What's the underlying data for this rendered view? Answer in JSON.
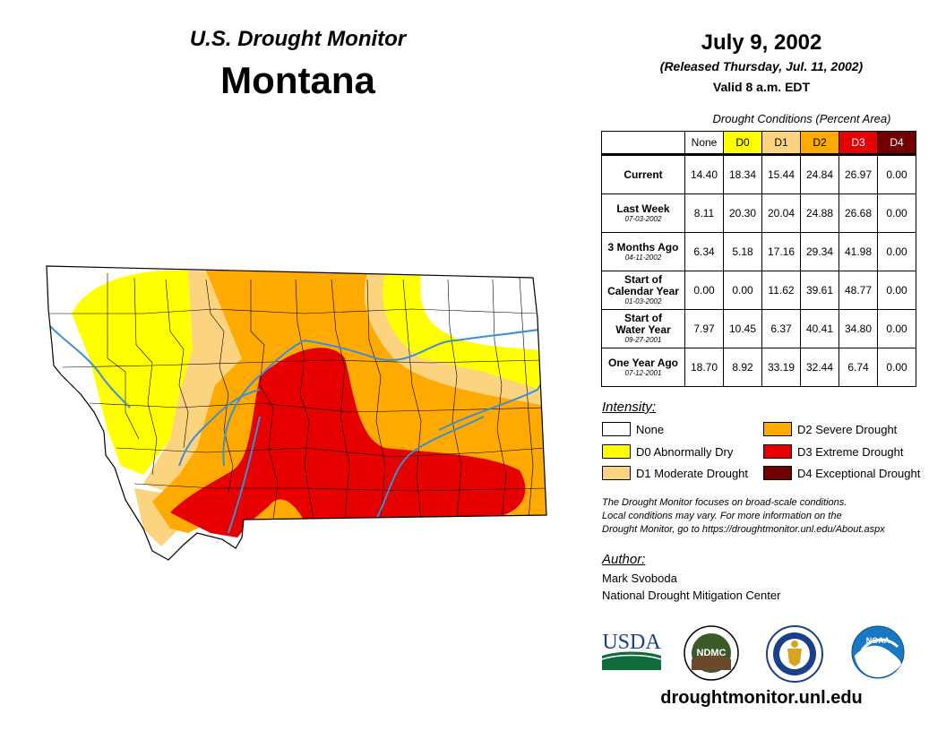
{
  "header": {
    "subtitle": "U.S. Drought Monitor",
    "state": "Montana"
  },
  "date": {
    "title": "July 9, 2002",
    "released": "(Released Thursday, Jul. 11, 2002)",
    "valid": "Valid 8 a.m. EDT"
  },
  "table": {
    "caption": "Drought Conditions (Percent Area)",
    "columns": [
      {
        "label": "None",
        "color": "#ffffff",
        "text": "#000000"
      },
      {
        "label": "D0",
        "color": "#ffff00",
        "text": "#000000"
      },
      {
        "label": "D1",
        "color": "#fcd37f",
        "text": "#000000"
      },
      {
        "label": "D2",
        "color": "#ffaa00",
        "text": "#000000"
      },
      {
        "label": "D3",
        "color": "#e60000",
        "text": "#ffffff"
      },
      {
        "label": "D4",
        "color": "#730000",
        "text": "#ffffff"
      }
    ],
    "rows": [
      {
        "label": "Current",
        "label2": "",
        "date": "",
        "values": [
          "14.40",
          "18.34",
          "15.44",
          "24.84",
          "26.97",
          "0.00"
        ]
      },
      {
        "label": "Last Week",
        "label2": "",
        "date": "07-03-2002",
        "values": [
          "8.11",
          "20.30",
          "20.04",
          "24.88",
          "26.68",
          "0.00"
        ]
      },
      {
        "label": "3 Months Ago",
        "label2": "",
        "date": "04-11-2002",
        "values": [
          "6.34",
          "5.18",
          "17.16",
          "29.34",
          "41.98",
          "0.00"
        ]
      },
      {
        "label": "Start of",
        "label2": "Calendar Year",
        "date": "01-03-2002",
        "values": [
          "0.00",
          "0.00",
          "11.62",
          "39.61",
          "48.77",
          "0.00"
        ]
      },
      {
        "label": "Start of",
        "label2": "Water Year",
        "date": "09-27-2001",
        "values": [
          "7.97",
          "10.45",
          "6.37",
          "40.41",
          "34.80",
          "0.00"
        ]
      },
      {
        "label": "One Year Ago",
        "label2": "",
        "date": "07-12-2001",
        "values": [
          "18.70",
          "8.92",
          "33.19",
          "32.44",
          "6.74",
          "0.00"
        ]
      }
    ]
  },
  "legend": {
    "title": "Intensity:",
    "items": [
      {
        "label": "None",
        "color": "#ffffff"
      },
      {
        "label": "D0 Abnormally Dry",
        "color": "#ffff00"
      },
      {
        "label": "D1 Moderate Drought",
        "color": "#fcd37f"
      },
      {
        "label": "D2 Severe Drought",
        "color": "#ffaa00"
      },
      {
        "label": "D3 Extreme Drought",
        "color": "#e60000"
      },
      {
        "label": "D4 Exceptional Drought",
        "color": "#730000"
      }
    ]
  },
  "note": {
    "line1": "The Drought Monitor focuses on broad-scale conditions.",
    "line2": "Local conditions may vary. For more information on the",
    "line3": "Drought Monitor, go to https://droughtmonitor.unl.edu/About.aspx"
  },
  "author": {
    "title": "Author:",
    "name": "Mark Svoboda",
    "org": "National Drought Mitigation Center"
  },
  "logos": {
    "usda": "USDA",
    "ndmc": "NDMC",
    "noaa": "NOAA"
  },
  "website": "droughtmonitor.unl.edu",
  "colors": {
    "none": "#ffffff",
    "d0": "#ffff00",
    "d1": "#fcd37f",
    "d2": "#ffaa00",
    "d3": "#e60000",
    "d4": "#730000",
    "river": "#3c8fd6"
  }
}
